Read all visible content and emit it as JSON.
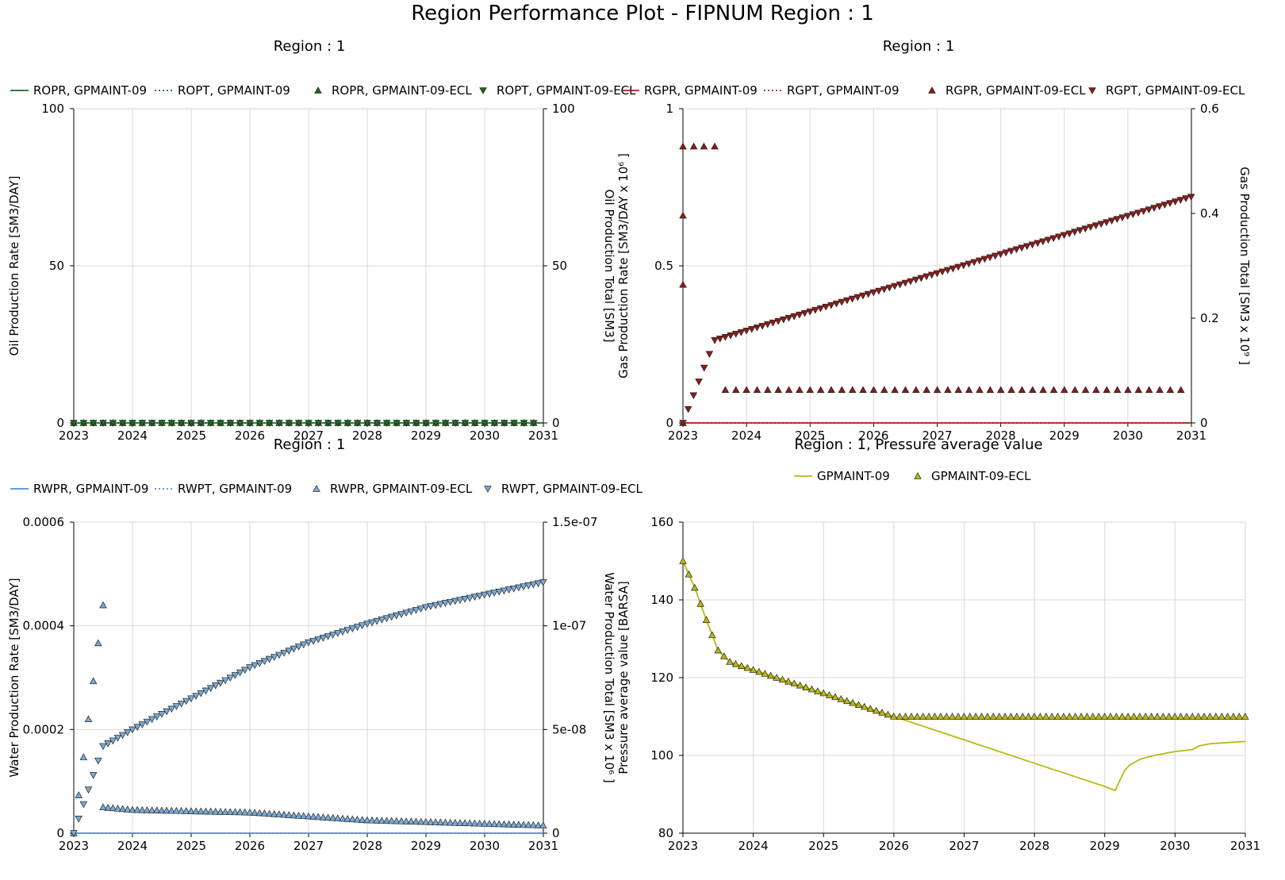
{
  "title": "Region Performance Plot - FIPNUM Region : 1",
  "colors": {
    "oil": "#1a6b1a",
    "gas": "#b01c1c",
    "gas_marker": "#8e1a1a",
    "water": "#4a90d9",
    "water_marker": "#7aaad6",
    "pressure": "#b8b814",
    "grid": "#d8d8d8"
  },
  "chart_data": [
    {
      "type": "line",
      "title": "Region : 1",
      "xlabel": "",
      "ylabel": "Oil Production Rate [SM3/DAY]",
      "y2label": "Oil Production Total [SM3]",
      "xlim": [
        2023,
        2031
      ],
      "xticks": [
        "2023",
        "2024",
        "2025",
        "2026",
        "2027",
        "2028",
        "2029",
        "2030",
        "2031"
      ],
      "ylim": [
        0,
        100
      ],
      "yticks": [
        "0",
        "50",
        "100"
      ],
      "y2lim": [
        0,
        100
      ],
      "y2ticks": [
        "0",
        "50",
        "100"
      ],
      "grid": true,
      "legend_position": "top",
      "series": [
        {
          "name": "ROPR, GPMAINT-09",
          "style": "solid",
          "axis": "left",
          "x": [
            2023,
            2031
          ],
          "values": [
            0,
            0
          ]
        },
        {
          "name": "ROPT, GPMAINT-09",
          "style": "dotted",
          "axis": "right",
          "x": [
            2023,
            2031
          ],
          "values": [
            0,
            0
          ]
        },
        {
          "name": "ROPR, GPMAINT-09-ECL",
          "style": "triangle-up",
          "axis": "left",
          "x_range": [
            2023,
            2031,
            0.1667
          ],
          "value": 0
        },
        {
          "name": "ROPT, GPMAINT-09-ECL",
          "style": "triangle-down",
          "axis": "right",
          "x_range": [
            2023,
            2031,
            0.1667
          ],
          "value": 0
        }
      ]
    },
    {
      "type": "line",
      "title": "Region : 1",
      "xlabel": "",
      "ylabel": "Gas Production Rate [SM3/DAY x 10⁶ ]",
      "y2label": "Gas Production Total [SM3 x 10⁹ ]",
      "xlim": [
        2023,
        2031
      ],
      "xticks": [
        "2023",
        "2024",
        "2025",
        "2026",
        "2027",
        "2028",
        "2029",
        "2030",
        "2031"
      ],
      "ylim": [
        0,
        1
      ],
      "yticks": [
        "0",
        "0.5",
        "1"
      ],
      "y2lim": [
        0,
        0.6
      ],
      "y2ticks": [
        "0",
        "0.2",
        "0.4",
        "0.6"
      ],
      "grid": true,
      "legend_position": "top",
      "series": [
        {
          "name": "RGPR, GPMAINT-09",
          "style": "solid",
          "axis": "left",
          "x": [
            2023,
            2031
          ],
          "values": [
            0,
            0
          ]
        },
        {
          "name": "RGPT, GPMAINT-09",
          "style": "dotted",
          "axis": "right",
          "x": [
            2023,
            2031
          ],
          "values": [
            0,
            0
          ]
        },
        {
          "name": "RGPR, GPMAINT-09-ECL",
          "style": "triangle-up",
          "axis": "left",
          "x": [
            2023.0,
            2023.0,
            2023.0,
            2023.0,
            2023.17,
            2023.33,
            2023.5
          ],
          "values": [
            0,
            0.44,
            0.66,
            0.88,
            0.88,
            0.88,
            0.88
          ],
          "tail": {
            "x_range": [
              2023.5,
              2031,
              0.1667
            ],
            "value": 0.105
          }
        },
        {
          "name": "RGPT, GPMAINT-09-ECL",
          "style": "triangle-down",
          "axis": "right",
          "x": [
            2023.0,
            2023.5,
            2031.0
          ],
          "values": [
            0,
            0.158,
            0.432
          ],
          "step": 0.0833
        }
      ]
    },
    {
      "type": "line",
      "title": "Region : 1",
      "xlabel": "",
      "ylabel": "Water Production Rate [SM3/DAY]",
      "y2label": "Water Production Total [SM3 x 10⁶ ]",
      "xlim": [
        2023,
        2031
      ],
      "xticks": [
        "2023",
        "2024",
        "2025",
        "2026",
        "2027",
        "2028",
        "2029",
        "2030",
        "2031"
      ],
      "ylim": [
        0,
        0.0006
      ],
      "yticks": [
        "0",
        "0.0002",
        "0.0004",
        "0.0006"
      ],
      "y2lim": [
        0,
        1.5e-07
      ],
      "y2ticks": [
        "0",
        "5e-08",
        "1e-07",
        "1.5e-07"
      ],
      "grid": true,
      "legend_position": "top",
      "series": [
        {
          "name": "RWPR, GPMAINT-09",
          "style": "solid",
          "axis": "left",
          "x": [
            2023,
            2031
          ],
          "values": [
            0,
            0
          ]
        },
        {
          "name": "RWPT, GPMAINT-09",
          "style": "dotted",
          "axis": "right",
          "x": [
            2023,
            2031
          ],
          "values": [
            0,
            0
          ]
        },
        {
          "name": "RWPR, GPMAINT-09-ECL",
          "style": "triangle-up",
          "axis": "left",
          "x": [
            2023.0,
            2023.5,
            2023.5,
            2024.0,
            2026.0,
            2028.0,
            2031.0
          ],
          "values": [
            0,
            0.00044,
            5e-05,
            4.5e-05,
            4e-05,
            2.5e-05,
            1.5e-05
          ],
          "step": 0.0833
        },
        {
          "name": "RWPT, GPMAINT-09-ECL",
          "style": "triangle-down",
          "axis": "right",
          "x": [
            2023.0,
            2023.5,
            2024.0,
            2025.0,
            2026.0,
            2027.0,
            2028.0,
            2029.0,
            2030.0,
            2031.0
          ],
          "values": [
            0,
            4.2e-08,
            5e-08,
            6.5e-08,
            8e-08,
            9.2e-08,
            1.01e-07,
            1.09e-07,
            1.15e-07,
            1.21e-07
          ],
          "step": 0.0833
        }
      ]
    },
    {
      "type": "line",
      "title": "Region : 1, Pressure average value",
      "xlabel": "",
      "ylabel": "Pressure average value [BARSA]",
      "xlim": [
        2023,
        2031
      ],
      "xticks": [
        "2023",
        "2024",
        "2025",
        "2026",
        "2027",
        "2028",
        "2029",
        "2030",
        "2031"
      ],
      "ylim": [
        80,
        160
      ],
      "yticks": [
        "80",
        "100",
        "120",
        "140",
        "160"
      ],
      "grid": true,
      "legend_position": "top",
      "series": [
        {
          "name": "GPMAINT-09",
          "style": "solid",
          "axis": "left",
          "x": [
            2023.0,
            2023.17,
            2023.33,
            2023.5,
            2023.67,
            2024.0,
            2025.0,
            2026.0,
            2027.0,
            2028.0,
            2029.0,
            2029.15,
            2029.2,
            2029.28,
            2029.35,
            2029.5,
            2029.7,
            2030.0,
            2030.25,
            2030.35,
            2030.5,
            2030.75,
            2031.0
          ],
          "values": [
            150,
            143,
            135,
            127,
            124,
            122,
            116,
            110,
            104,
            98,
            92,
            91,
            93,
            96,
            97.5,
            99,
            100,
            101,
            101.5,
            102.5,
            103,
            103.3,
            103.6
          ]
        },
        {
          "name": "GPMAINT-09-ECL",
          "style": "triangle-up",
          "axis": "left",
          "x": [
            2023.0,
            2023.17,
            2023.33,
            2023.5,
            2023.67,
            2024.0,
            2025.0,
            2026.0,
            2026.25,
            2031.0
          ],
          "values": [
            150,
            143,
            135,
            127,
            124,
            122,
            116,
            110,
            110,
            110
          ],
          "step": 0.0833
        }
      ]
    }
  ]
}
